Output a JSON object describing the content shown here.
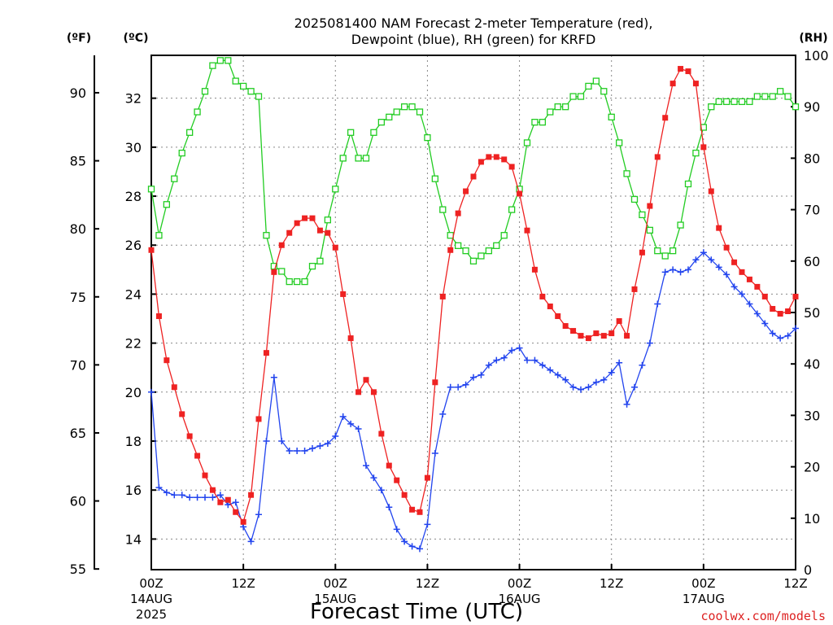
{
  "chart_data": {
    "type": "line",
    "title_lines": [
      "2025081400 NAM Forecast 2-meter Temperature (red),",
      "Dewpoint (blue), RH (green) for KRFD"
    ],
    "xlabel": "Forecast Time (UTC)",
    "credit": "coolwx.com/models",
    "units": {
      "fahrenheit": "(ºF)",
      "celsius": "(ºC)",
      "rh": "(RH)"
    },
    "x_range_hours": [
      0,
      84
    ],
    "celsius_range": [
      12.75,
      33.75
    ],
    "fahrenheit_ticks": [
      "55",
      "60",
      "65",
      "70",
      "75",
      "80",
      "85",
      "90"
    ],
    "celsius_ticks": [
      "14",
      "16",
      "18",
      "20",
      "22",
      "24",
      "26",
      "28",
      "30",
      "32"
    ],
    "rh_ticks": [
      "0",
      "10",
      "20",
      "30",
      "40",
      "50",
      "60",
      "70",
      "80",
      "90",
      "100"
    ],
    "x_ticks": [
      {
        "hour": 0,
        "line1": "00Z",
        "line2": "14AUG",
        "line3": "2025"
      },
      {
        "hour": 12,
        "line1": "12Z",
        "line2": "",
        "line3": ""
      },
      {
        "hour": 24,
        "line1": "00Z",
        "line2": "15AUG",
        "line3": ""
      },
      {
        "hour": 36,
        "line1": "12Z",
        "line2": "",
        "line3": ""
      },
      {
        "hour": 48,
        "line1": "00Z",
        "line2": "16AUG",
        "line3": ""
      },
      {
        "hour": 60,
        "line1": "12Z",
        "line2": "",
        "line3": ""
      },
      {
        "hour": 72,
        "line1": "00Z",
        "line2": "17AUG",
        "line3": ""
      },
      {
        "hour": 84,
        "line1": "12Z",
        "line2": "",
        "line3": ""
      }
    ],
    "grid": true,
    "series": [
      {
        "name": "Temperature",
        "color": "#ee2222",
        "marker": "filled-square",
        "axis": "celsius",
        "values": [
          25.8,
          23.1,
          21.3,
          20.2,
          19.1,
          18.2,
          17.4,
          16.6,
          16.0,
          15.5,
          15.6,
          15.1,
          14.7,
          15.8,
          18.9,
          21.6,
          24.9,
          26.0,
          26.5,
          26.9,
          27.1,
          27.1,
          26.6,
          26.5,
          25.9,
          24.0,
          22.2,
          20.0,
          20.5,
          20.0,
          18.3,
          17.0,
          16.4,
          15.8,
          15.2,
          15.1,
          16.5,
          20.4,
          23.9,
          25.8,
          27.3,
          28.2,
          28.8,
          29.4,
          29.6,
          29.6,
          29.5,
          29.2,
          28.1,
          26.6,
          25.0,
          23.9,
          23.5,
          23.1,
          22.7,
          22.5,
          22.3,
          22.2,
          22.4,
          22.3,
          22.4,
          22.9,
          22.3,
          24.2,
          25.7,
          27.6,
          29.6,
          31.2,
          32.6,
          33.2,
          33.1,
          32.6,
          30.0,
          28.2,
          26.7,
          25.9,
          25.3,
          24.9,
          24.6,
          24.3,
          23.9,
          23.4,
          23.2,
          23.3,
          23.9
        ]
      },
      {
        "name": "Dewpoint",
        "color": "#2244ee",
        "marker": "plus",
        "axis": "celsius",
        "values": [
          20.0,
          16.1,
          15.9,
          15.8,
          15.8,
          15.7,
          15.7,
          15.7,
          15.7,
          15.8,
          15.4,
          15.5,
          14.5,
          13.9,
          15.0,
          18.0,
          20.6,
          18.0,
          17.6,
          17.6,
          17.6,
          17.7,
          17.8,
          17.9,
          18.2,
          19.0,
          18.7,
          18.5,
          17.0,
          16.5,
          16.0,
          15.3,
          14.4,
          13.9,
          13.7,
          13.6,
          14.6,
          17.5,
          19.1,
          20.2,
          20.2,
          20.3,
          20.6,
          20.7,
          21.1,
          21.3,
          21.4,
          21.7,
          21.8,
          21.3,
          21.3,
          21.1,
          20.9,
          20.7,
          20.5,
          20.2,
          20.1,
          20.2,
          20.4,
          20.5,
          20.8,
          21.2,
          19.5,
          20.2,
          21.1,
          22.0,
          23.6,
          24.9,
          25.0,
          24.9,
          25.0,
          25.4,
          25.7,
          25.4,
          25.1,
          24.8,
          24.3,
          24.0,
          23.6,
          23.2,
          22.8,
          22.4,
          22.2,
          22.3,
          22.6
        ]
      },
      {
        "name": "RH",
        "color": "#22cc22",
        "marker": "open-square",
        "axis": "rh",
        "values": [
          74,
          65,
          71,
          76,
          81,
          85,
          89,
          93,
          98,
          99,
          99,
          95,
          94,
          93,
          92,
          65,
          59,
          58,
          56,
          56,
          56,
          59,
          60,
          68,
          74,
          80,
          85,
          80,
          80,
          85,
          87,
          88,
          89,
          90,
          90,
          89,
          84,
          76,
          70,
          65,
          63,
          62,
          60,
          61,
          62,
          63,
          65,
          70,
          74,
          83,
          87,
          87,
          89,
          90,
          90,
          92,
          92,
          94,
          95,
          93,
          88,
          83,
          77,
          72,
          69,
          66,
          62,
          61,
          62,
          67,
          75,
          81,
          86,
          90,
          91,
          91,
          91,
          91,
          91,
          92,
          92,
          92,
          93,
          92,
          90
        ]
      }
    ]
  }
}
